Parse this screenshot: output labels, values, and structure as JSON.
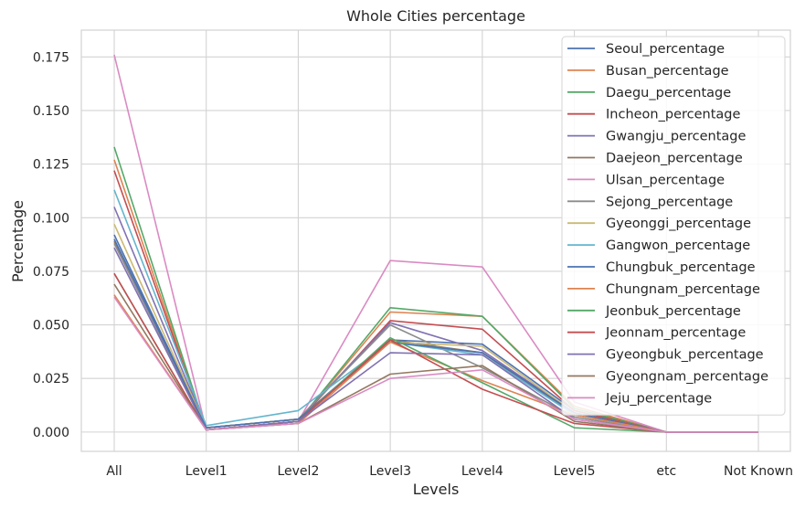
{
  "chart_data": {
    "type": "line",
    "title": "Whole Cities percentage",
    "xlabel": "Levels",
    "ylabel": "Percentage",
    "categories": [
      "All",
      "Level1",
      "Level2",
      "Level3",
      "Level4",
      "Level5",
      "etc",
      "Not Known"
    ],
    "ylim": [
      -0.009,
      0.1875
    ],
    "yticks": [
      0.0,
      0.025,
      0.05,
      0.075,
      0.1,
      0.125,
      0.15,
      0.175
    ],
    "ytick_labels": [
      "0.000",
      "0.025",
      "0.050",
      "0.075",
      "0.100",
      "0.125",
      "0.150",
      "0.175"
    ],
    "grid": true,
    "legend_position": "top-right",
    "series": [
      {
        "name": "Seoul_percentage",
        "color": "#4c72b0",
        "values": [
          0.092,
          0.002,
          0.006,
          0.043,
          0.041,
          0.01,
          0.0,
          0.0
        ]
      },
      {
        "name": "Busan_percentage",
        "color": "#dd8452",
        "values": [
          0.127,
          0.001,
          0.005,
          0.056,
          0.054,
          0.012,
          0.0,
          0.0
        ]
      },
      {
        "name": "Daegu_percentage",
        "color": "#55a868",
        "values": [
          0.133,
          0.001,
          0.005,
          0.058,
          0.054,
          0.011,
          0.0,
          0.0
        ]
      },
      {
        "name": "Incheon_percentage",
        "color": "#c44e52",
        "values": [
          0.122,
          0.001,
          0.005,
          0.052,
          0.048,
          0.01,
          0.0,
          0.0
        ]
      },
      {
        "name": "Gwangju_percentage",
        "color": "#8172b3",
        "values": [
          0.105,
          0.002,
          0.006,
          0.051,
          0.038,
          0.009,
          0.0,
          0.0
        ]
      },
      {
        "name": "Daejeon_percentage",
        "color": "#937860",
        "values": [
          0.089,
          0.001,
          0.005,
          0.043,
          0.037,
          0.008,
          0.0,
          0.0
        ]
      },
      {
        "name": "Ulsan_percentage",
        "color": "#da8bc3",
        "values": [
          0.176,
          0.001,
          0.005,
          0.08,
          0.077,
          0.014,
          0.0,
          0.0
        ]
      },
      {
        "name": "Sejong_percentage",
        "color": "#8c8c8c",
        "values": [
          0.088,
          0.002,
          0.006,
          0.05,
          0.03,
          0.007,
          0.0,
          0.0
        ]
      },
      {
        "name": "Gyeonggi_percentage",
        "color": "#ccb974",
        "values": [
          0.097,
          0.002,
          0.006,
          0.042,
          0.04,
          0.009,
          0.0,
          0.0
        ]
      },
      {
        "name": "Gangwon_percentage",
        "color": "#64b5cd",
        "values": [
          0.113,
          0.003,
          0.01,
          0.042,
          0.036,
          0.008,
          0.0,
          0.0
        ]
      },
      {
        "name": "Chungbuk_percentage",
        "color": "#4c72b0",
        "values": [
          0.09,
          0.002,
          0.006,
          0.042,
          0.037,
          0.009,
          0.0,
          0.0
        ]
      },
      {
        "name": "Chungnam_percentage",
        "color": "#dd8452",
        "values": [
          0.064,
          0.001,
          0.004,
          0.042,
          0.024,
          0.008,
          0.0,
          0.0
        ]
      },
      {
        "name": "Jeonbuk_percentage",
        "color": "#55a868",
        "values": [
          0.074,
          0.001,
          0.005,
          0.044,
          0.023,
          0.002,
          0.0,
          0.0
        ]
      },
      {
        "name": "Jeonnam_percentage",
        "color": "#c44e52",
        "values": [
          0.074,
          0.001,
          0.005,
          0.043,
          0.02,
          0.004,
          0.0,
          0.0
        ]
      },
      {
        "name": "Gyeongbuk_percentage",
        "color": "#8172b3",
        "values": [
          0.086,
          0.001,
          0.005,
          0.037,
          0.036,
          0.006,
          0.0,
          0.0
        ]
      },
      {
        "name": "Gyeongnam_percentage",
        "color": "#937860",
        "values": [
          0.069,
          0.001,
          0.004,
          0.027,
          0.031,
          0.005,
          0.0,
          0.0
        ]
      },
      {
        "name": "Jeju_percentage",
        "color": "#da8bc3",
        "values": [
          0.063,
          0.001,
          0.004,
          0.025,
          0.029,
          0.006,
          0.0,
          0.0
        ]
      }
    ]
  }
}
